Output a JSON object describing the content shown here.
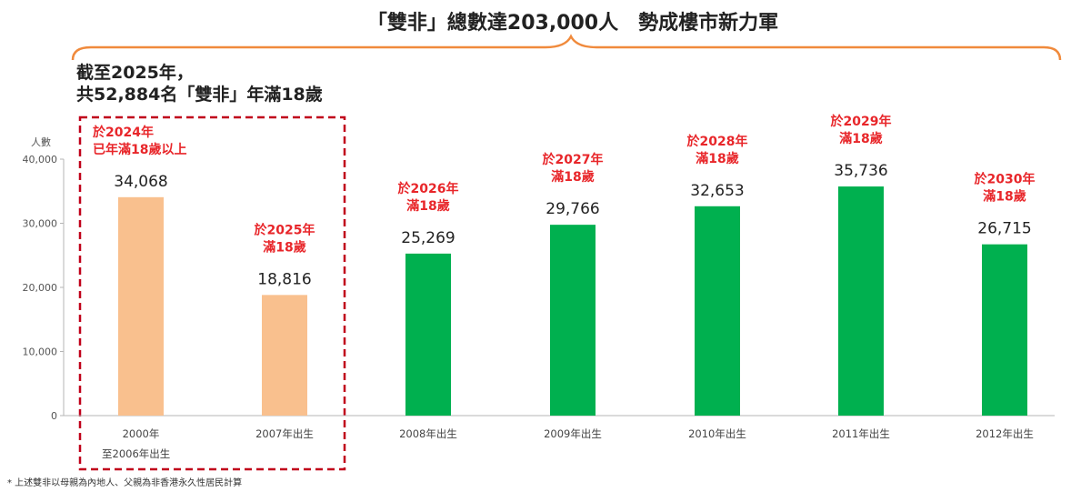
{
  "title": "「雙非」總數達203,000人　勢成樓市新力軍",
  "summary": [
    "截至2025年，",
    "共52,884名「雙非」年滿18歲"
  ],
  "footnote": "* 上述雙非以母親為內地人、父親為非香港永久性居民計算",
  "chart_data": {
    "type": "bar",
    "ylabel": "人數",
    "ylim": [
      0,
      40000
    ],
    "yticks": [
      0,
      10000,
      20000,
      30000,
      40000
    ],
    "ytick_labels": [
      "0",
      "10,000",
      "20,000",
      "30,000",
      "40,000"
    ],
    "categories": [
      [
        "2000年",
        "至2006年出生"
      ],
      [
        "2007年出生"
      ],
      [
        "2008年出生"
      ],
      [
        "2009年出生"
      ],
      [
        "2010年出生"
      ],
      [
        "2011年出生"
      ],
      [
        "2012年出生"
      ]
    ],
    "values": [
      34068,
      18816,
      25269,
      29766,
      32653,
      35736,
      26715
    ],
    "value_labels": [
      "34,068",
      "18,816",
      "25,269",
      "29,766",
      "32,653",
      "35,736",
      "26,715"
    ],
    "annotations": [
      [
        "於2024年",
        "已年滿18歲以上"
      ],
      [
        "於2025年",
        "滿18歲"
      ],
      [
        "於2026年",
        "滿18歲"
      ],
      [
        "於2027年",
        "滿18歲"
      ],
      [
        "於2028年",
        "滿18歲"
      ],
      [
        "於2029年",
        "滿18歲"
      ],
      [
        "於2030年",
        "滿18歲"
      ]
    ],
    "bar_colors": [
      "#f9c08e",
      "#f9c08e",
      "#00b04f",
      "#00b04f",
      "#00b04f",
      "#00b04f",
      "#00b04f"
    ],
    "annotation_color": "#e8262a",
    "brace_color": "#f08a3c",
    "highlight_box_color": "#c0001a",
    "grid": false
  }
}
